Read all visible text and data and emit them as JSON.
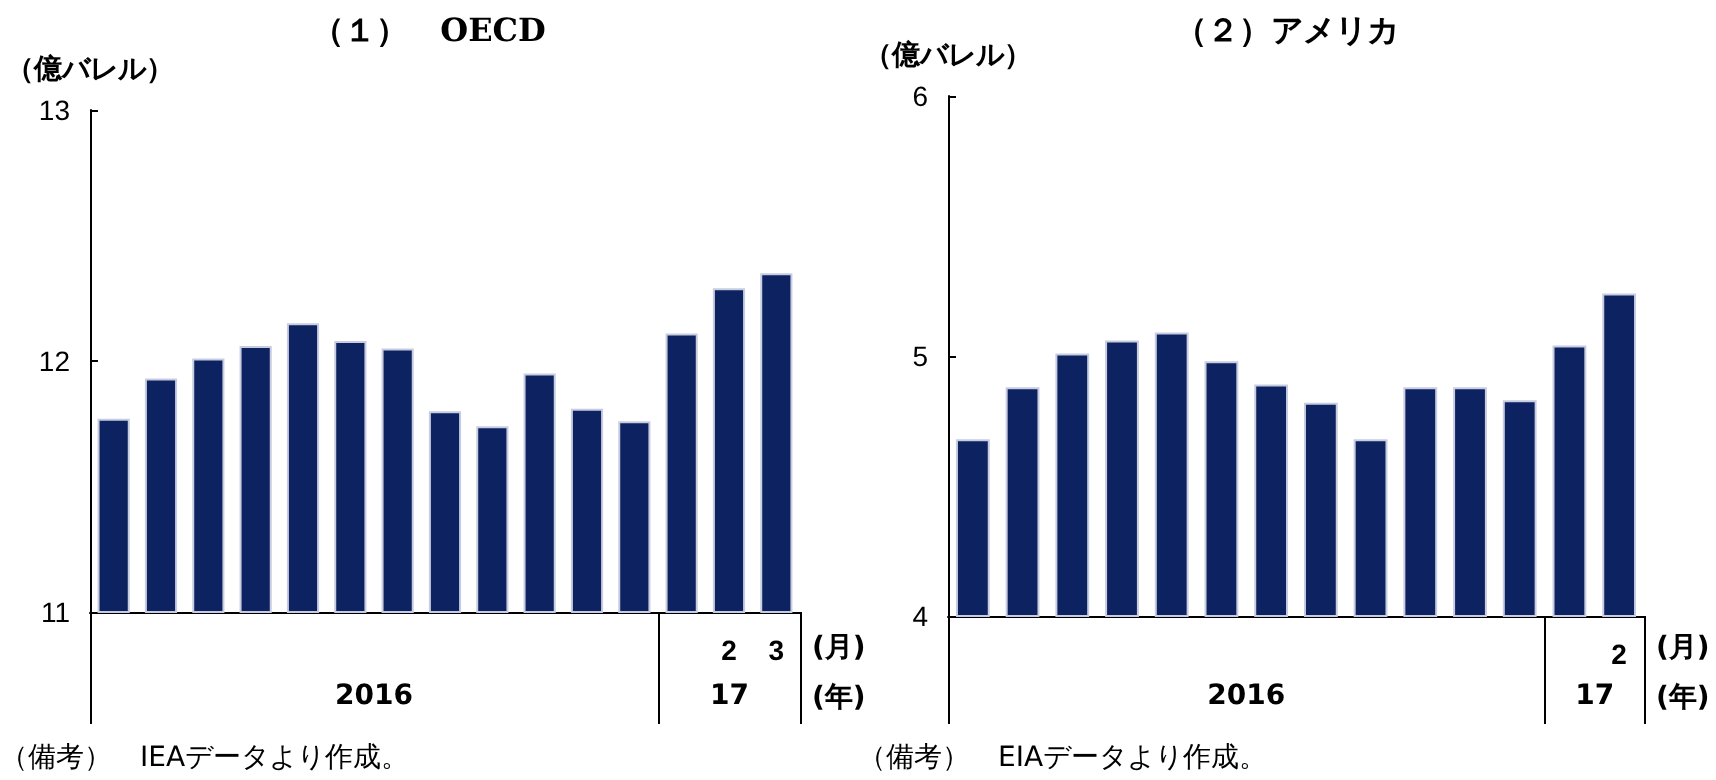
{
  "chart_data": [
    {
      "type": "bar",
      "title": "（１）　OECD",
      "ylabel": "（億バレル）",
      "categories": [
        null,
        null,
        null,
        null,
        null,
        null,
        null,
        null,
        null,
        null,
        null,
        null,
        null,
        "2",
        "3"
      ],
      "values": [
        11.77,
        11.93,
        12.01,
        12.06,
        12.15,
        12.08,
        12.05,
        11.8,
        11.74,
        11.95,
        11.81,
        11.76,
        12.11,
        12.29,
        12.35
      ],
      "color": "#0d2260",
      "ylim": [
        11,
        13
      ],
      "yticks": [
        11,
        12,
        13
      ],
      "grid": false,
      "annotations": [
        "2016",
        "17",
        "(月)",
        "(年)",
        "（備考）　IEAデータより作成。"
      ]
    },
    {
      "type": "bar",
      "title": "（２）アメリカ",
      "ylabel": "（億バレル）",
      "categories": [
        null,
        null,
        null,
        null,
        null,
        null,
        null,
        null,
        null,
        null,
        null,
        null,
        null,
        "2"
      ],
      "values": [
        4.68,
        4.88,
        5.01,
        5.06,
        5.09,
        4.98,
        4.89,
        4.82,
        4.68,
        4.88,
        4.88,
        4.83,
        5.04,
        5.24
      ],
      "color": "#0d2260",
      "ylim": [
        4,
        6
      ],
      "yticks": [
        4,
        5,
        6
      ],
      "grid": false,
      "annotations": [
        "2016",
        "17",
        "(月)",
        "(年)",
        "（備考）　EIAデータより作成。"
      ]
    }
  ]
}
